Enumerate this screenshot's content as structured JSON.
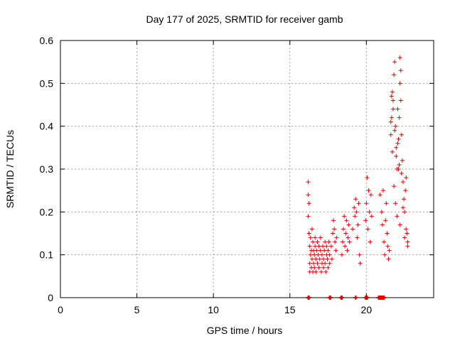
{
  "chart_data": {
    "type": "scatter",
    "title": "Day 177 of 2025, SRMTID for receiver gamb",
    "xlabel": "GPS time / hours",
    "ylabel": "SRMTID / TECUs",
    "xlim": [
      0,
      24.4
    ],
    "ylim": [
      0,
      0.6
    ],
    "x_ticks": [
      0,
      5,
      10,
      15,
      20
    ],
    "y_ticks": [
      0,
      0.1,
      0.2,
      0.3,
      0.4,
      0.5,
      0.6
    ],
    "x_tick_labels": [
      "0",
      "5",
      "10",
      "15",
      "20"
    ],
    "y_tick_labels": [
      "0",
      "0.1",
      "0.2",
      "0.3",
      "0.4",
      "0.5",
      "0.6"
    ],
    "grid": true,
    "marker": "+",
    "color": "#e00000",
    "series": [
      {
        "name": "SRMTID",
        "x": [
          16.2,
          16.2,
          16.2,
          16.25,
          16.25,
          16.3,
          16.3,
          16.3,
          16.35,
          16.35,
          16.4,
          16.4,
          16.45,
          16.45,
          16.5,
          16.5,
          16.55,
          16.55,
          16.6,
          16.6,
          16.65,
          16.65,
          16.7,
          16.7,
          16.75,
          16.8,
          16.8,
          16.85,
          16.9,
          16.9,
          16.95,
          17.0,
          17.0,
          17.05,
          17.1,
          17.1,
          17.15,
          17.2,
          17.2,
          17.25,
          17.3,
          17.3,
          17.35,
          17.4,
          17.4,
          17.45,
          17.5,
          17.5,
          17.55,
          17.6,
          17.6,
          17.7,
          17.75,
          17.8,
          17.85,
          17.9,
          17.95,
          18.0,
          18.05,
          18.4,
          18.45,
          18.5,
          18.55,
          18.6,
          18.65,
          18.7,
          18.75,
          18.8,
          18.85,
          18.9,
          19.1,
          19.2,
          19.25,
          19.3,
          19.35,
          19.4,
          19.45,
          19.5,
          19.55,
          19.6,
          19.95,
          20.0,
          20.05,
          20.1,
          20.15,
          20.2,
          20.25,
          20.3,
          20.35,
          20.9,
          21.0,
          21.05,
          21.1,
          21.15,
          21.2,
          21.25,
          21.3,
          21.35,
          21.4,
          21.45,
          21.5,
          21.6,
          21.65,
          21.7,
          21.75,
          21.8,
          21.85,
          21.9,
          21.95,
          22.0,
          22.05,
          22.1,
          22.15,
          22.2,
          22.25,
          22.3,
          22.35,
          22.4,
          22.45,
          22.5,
          22.55,
          22.6,
          22.65,
          22.7,
          21.6,
          21.65,
          21.75,
          21.85,
          21.95,
          22.05,
          22.15,
          22.2,
          22.25,
          22.3,
          21.7,
          21.8,
          21.9,
          22.0,
          22.1,
          22.2,
          22.4,
          22.5,
          22.6,
          22.7
        ],
        "y": [
          0.27,
          0.24,
          0.19,
          0.22,
          0.15,
          0.08,
          0.12,
          0.06,
          0.1,
          0.14,
          0.07,
          0.11,
          0.16,
          0.09,
          0.13,
          0.06,
          0.08,
          0.11,
          0.1,
          0.07,
          0.12,
          0.14,
          0.09,
          0.06,
          0.11,
          0.08,
          0.13,
          0.1,
          0.07,
          0.12,
          0.09,
          0.14,
          0.11,
          0.06,
          0.08,
          0.1,
          0.12,
          0.09,
          0.07,
          0.11,
          0.13,
          0.08,
          0.06,
          0.1,
          0.12,
          0.09,
          0.07,
          0.11,
          0.13,
          0.08,
          0.1,
          0.12,
          0.09,
          0.15,
          0.18,
          0.16,
          0.13,
          0.11,
          0.14,
          0.1,
          0.13,
          0.16,
          0.19,
          0.12,
          0.15,
          0.18,
          0.11,
          0.14,
          0.17,
          0.13,
          0.16,
          0.21,
          0.19,
          0.23,
          0.2,
          0.14,
          0.17,
          0.22,
          0.1,
          0.08,
          0.18,
          0.22,
          0.28,
          0.16,
          0.25,
          0.2,
          0.13,
          0.24,
          0.19,
          0.24,
          0.2,
          0.17,
          0.25,
          0.13,
          0.1,
          0.18,
          0.22,
          0.15,
          0.12,
          0.09,
          0.11,
          0.38,
          0.42,
          0.48,
          0.46,
          0.52,
          0.55,
          0.4,
          0.35,
          0.3,
          0.44,
          0.37,
          0.42,
          0.5,
          0.46,
          0.38,
          0.32,
          0.27,
          0.23,
          0.2,
          0.25,
          0.28,
          0.15,
          0.12,
          0.41,
          0.47,
          0.44,
          0.39,
          0.33,
          0.36,
          0.31,
          0.56,
          0.53,
          0.29,
          0.34,
          0.26,
          0.22,
          0.19,
          0.3,
          0.17,
          0.21,
          0.14,
          0.16,
          0.13
        ],
        "zero_x": [
          16.2,
          16.25,
          17.6,
          17.65,
          18.35,
          18.4,
          19.3,
          19.95,
          20.0,
          20.05,
          20.8,
          20.85,
          20.9,
          20.95,
          21.0,
          21.05,
          21.1,
          21.15
        ]
      }
    ]
  }
}
